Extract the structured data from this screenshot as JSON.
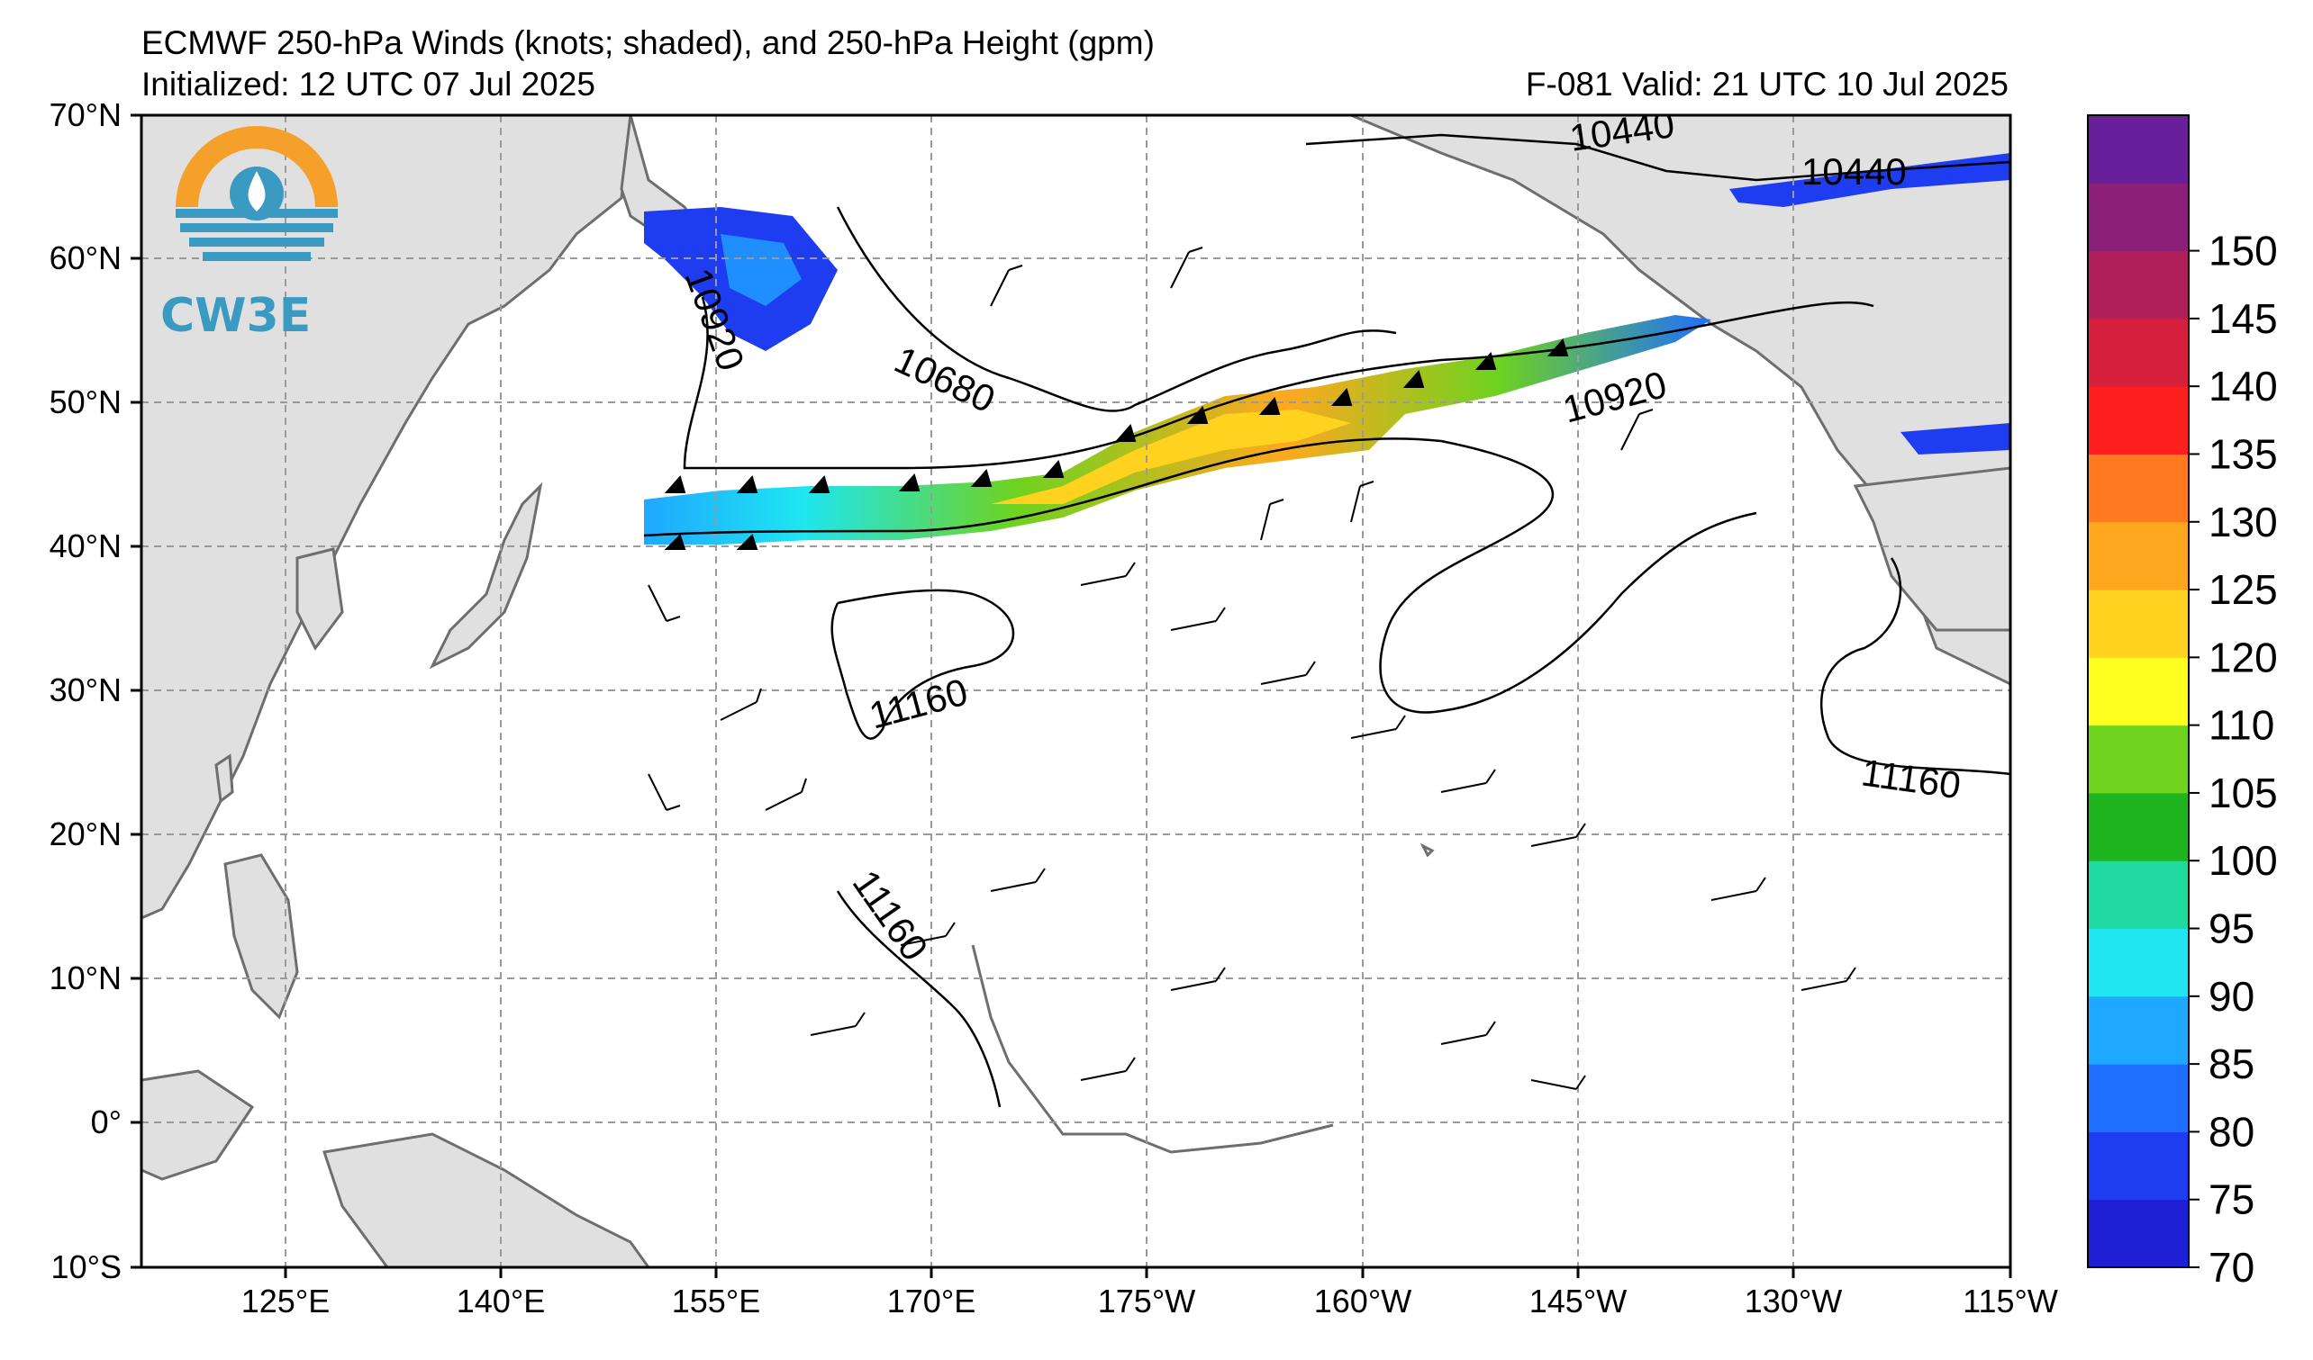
{
  "header": {
    "title": "ECMWF 250-hPa Winds (knots; shaded), and 250-hPa Height (gpm)",
    "initialized": "Initialized: 12 UTC 07 Jul 2025",
    "valid": "F-081  Valid: 21 UTC 10 Jul 2025"
  },
  "logo": {
    "text": "CW3E",
    "icon": "cw3e-logo-icon"
  },
  "axes": {
    "lat_labels": [
      "70°N",
      "60°N",
      "50°N",
      "40°N",
      "30°N",
      "20°N",
      "10°N",
      "0°",
      "10°S"
    ],
    "lon_labels": [
      "125°E",
      "140°E",
      "155°E",
      "170°E",
      "175°W",
      "160°W",
      "145°W",
      "130°W",
      "115°W"
    ]
  },
  "contour_labels": [
    "10440",
    "10440",
    "10920",
    "10680",
    "10920",
    "11160",
    "11160",
    "11160"
  ],
  "colorbar": {
    "ticks": [
      "70",
      "75",
      "80",
      "85",
      "90",
      "95",
      "100",
      "105",
      "110",
      "120",
      "125",
      "130",
      "135",
      "140",
      "145",
      "150"
    ],
    "colors": [
      "#1f1fd6",
      "#1e3cf0",
      "#1e6fff",
      "#1fa8ff",
      "#1fe6f0",
      "#1fd9a0",
      "#1fb51f",
      "#6fd21f",
      "#ffff1f",
      "#ffd21f",
      "#ffa81f",
      "#ff7a1f",
      "#ff1f1f",
      "#d61f3c",
      "#b01f5a",
      "#8c1f78",
      "#6a1f9a"
    ]
  },
  "colors": {
    "land": "#e0e0e0",
    "coast": "#6e6e6e",
    "grid": "#9a9a9a"
  }
}
